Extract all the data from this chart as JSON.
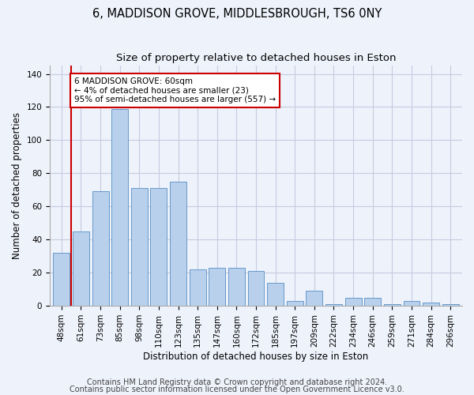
{
  "title": "6, MADDISON GROVE, MIDDLESBROUGH, TS6 0NY",
  "subtitle": "Size of property relative to detached houses in Eston",
  "xlabel": "Distribution of detached houses by size in Eston",
  "ylabel": "Number of detached properties",
  "categories": [
    "48sqm",
    "61sqm",
    "73sqm",
    "85sqm",
    "98sqm",
    "110sqm",
    "123sqm",
    "135sqm",
    "147sqm",
    "160sqm",
    "172sqm",
    "185sqm",
    "197sqm",
    "209sqm",
    "222sqm",
    "234sqm",
    "246sqm",
    "259sqm",
    "271sqm",
    "284sqm",
    "296sqm"
  ],
  "values": [
    32,
    45,
    69,
    119,
    71,
    71,
    75,
    22,
    23,
    23,
    21,
    14,
    3,
    9,
    1,
    5,
    5,
    1,
    3,
    2,
    1
  ],
  "bar_color": "#b8d0eb",
  "bar_edge_color": "#6699cc",
  "vline_color": "#cc0000",
  "vline_x_index": 0.5,
  "annotation_text": "6 MADDISON GROVE: 60sqm\n← 4% of detached houses are smaller (23)\n95% of semi-detached houses are larger (557) →",
  "annotation_box_color": "white",
  "annotation_box_edge_color": "#cc0000",
  "ylim": [
    0,
    145
  ],
  "yticks": [
    0,
    20,
    40,
    60,
    80,
    100,
    120,
    140
  ],
  "footer_line1": "Contains HM Land Registry data © Crown copyright and database right 2024.",
  "footer_line2": "Contains public sector information licensed under the Open Government Licence v3.0.",
  "background_color": "#eef2fb",
  "plot_background_color": "#eef2fb",
  "grid_color": "#c5cce0",
  "title_fontsize": 10.5,
  "subtitle_fontsize": 9.5,
  "axis_label_fontsize": 8.5,
  "tick_fontsize": 7.5,
  "footer_fontsize": 7
}
